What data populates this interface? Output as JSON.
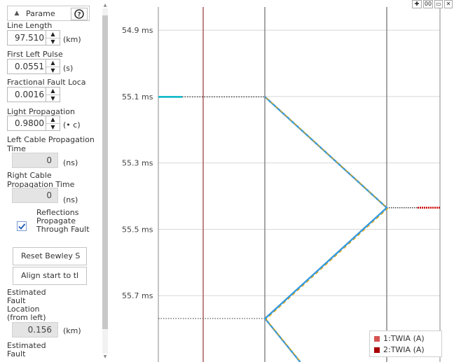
{
  "panel": {
    "tab_label": "Parame",
    "line_length": {
      "label": "Line Length",
      "value": "97.510",
      "unit": "(km)"
    },
    "first_left_pulse": {
      "label": "First Left Pulse",
      "value": "0.0551",
      "unit": "(s)"
    },
    "fractional_fault": {
      "label": "Fractional Fault Loca",
      "value": "0.0016"
    },
    "light_propagation": {
      "label": "Light Propagation",
      "value": "0.9800",
      "unit": "(• c)"
    },
    "left_cable": {
      "label": "Left Cable Propagation Time",
      "value": "0",
      "unit": "(ns)"
    },
    "right_cable": {
      "label": "Right Cable Propagation Time",
      "value": "0",
      "unit": "(ns)"
    },
    "reflections": {
      "label": "Reflections Propagate Through Fault",
      "checked": true
    },
    "reset_button": "Reset Bewley S",
    "align_button": "Align start to tl",
    "estimated_fault": {
      "label": "Estimated Fault Location (from left)",
      "value": "0.156",
      "unit": "(km)"
    },
    "estimated_fault_2": {
      "label": "Estimated Fault"
    }
  },
  "toolbar": {
    "icons": [
      "move-icon",
      "zoom-fit-icon",
      "save-icon",
      "close-icon"
    ],
    "zoom_label": "00"
  },
  "chart_data": {
    "type": "line",
    "title": "",
    "orientation": "time-vertical",
    "ytick_labels": [
      "54.9 ms",
      "55.1 ms",
      "55.3 ms",
      "55.5 ms",
      "55.7 ms"
    ],
    "ylim": [
      54.83,
      55.9
    ],
    "x_positions": {
      "left_bus": 0,
      "fault": 0.0016,
      "right_bus": 1
    },
    "series": [
      {
        "name": "1:TWIA (A)",
        "color": "#d65454"
      },
      {
        "name": "2:TWIA (A)",
        "color": "#a80000"
      }
    ],
    "bewley_path": [
      {
        "pos": 0.0016,
        "t": 55.101
      },
      {
        "pos": 1,
        "t": 55.435
      },
      {
        "pos": 0.0016,
        "t": 55.769
      },
      {
        "pos": 0.29,
        "t": 55.9
      }
    ],
    "colors": {
      "path": "#3399dd",
      "path_dash": "#e5a000",
      "left_pulse": "#00b7c7",
      "right_pulse": "#cc0000",
      "grid": "#d8d8d8"
    }
  }
}
